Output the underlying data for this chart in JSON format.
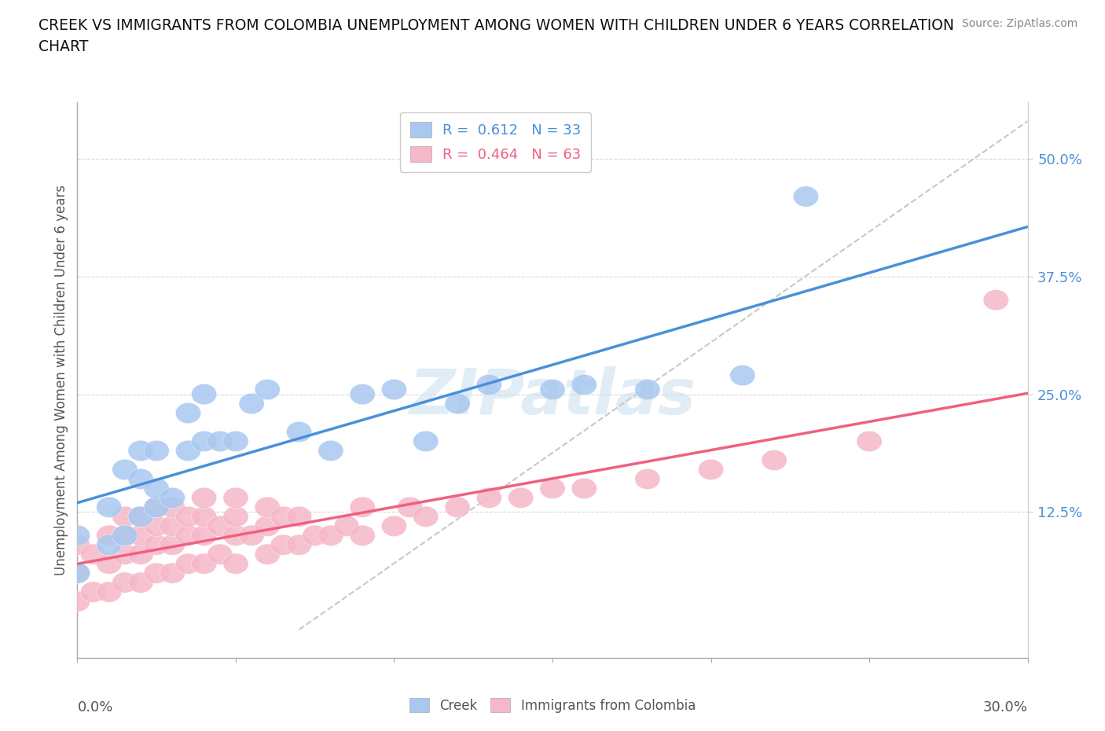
{
  "title": "CREEK VS IMMIGRANTS FROM COLOMBIA UNEMPLOYMENT AMONG WOMEN WITH CHILDREN UNDER 6 YEARS CORRELATION\nCHART",
  "source": "Source: ZipAtlas.com",
  "ylabel_label": "Unemployment Among Women with Children Under 6 years",
  "y_tick_labels": [
    "12.5%",
    "25.0%",
    "37.5%",
    "50.0%"
  ],
  "y_tick_values": [
    0.125,
    0.25,
    0.375,
    0.5
  ],
  "xlim": [
    0.0,
    0.3
  ],
  "ylim": [
    -0.03,
    0.56
  ],
  "creek_color": "#a8c8f0",
  "colombia_color": "#f5b8c8",
  "creek_line_color": "#4a90d9",
  "colombia_line_color": "#f06080",
  "trend_dash_color": "#c8c8c8",
  "creek_R": 0.612,
  "creek_N": 33,
  "colombia_R": 0.464,
  "colombia_N": 63,
  "watermark": "ZIPatlas",
  "creek_x": [
    0.0,
    0.0,
    0.01,
    0.01,
    0.015,
    0.015,
    0.02,
    0.02,
    0.02,
    0.025,
    0.025,
    0.025,
    0.03,
    0.035,
    0.035,
    0.04,
    0.04,
    0.045,
    0.05,
    0.055,
    0.06,
    0.07,
    0.08,
    0.09,
    0.1,
    0.11,
    0.12,
    0.13,
    0.15,
    0.16,
    0.18,
    0.21,
    0.23
  ],
  "creek_y": [
    0.06,
    0.1,
    0.09,
    0.13,
    0.1,
    0.17,
    0.12,
    0.16,
    0.19,
    0.13,
    0.15,
    0.19,
    0.14,
    0.19,
    0.23,
    0.2,
    0.25,
    0.2,
    0.2,
    0.24,
    0.255,
    0.21,
    0.19,
    0.25,
    0.255,
    0.2,
    0.24,
    0.26,
    0.255,
    0.26,
    0.255,
    0.27,
    0.46
  ],
  "colombia_x": [
    0.0,
    0.0,
    0.0,
    0.005,
    0.005,
    0.01,
    0.01,
    0.01,
    0.015,
    0.015,
    0.015,
    0.015,
    0.02,
    0.02,
    0.02,
    0.02,
    0.025,
    0.025,
    0.025,
    0.025,
    0.03,
    0.03,
    0.03,
    0.03,
    0.035,
    0.035,
    0.035,
    0.04,
    0.04,
    0.04,
    0.04,
    0.045,
    0.045,
    0.05,
    0.05,
    0.05,
    0.05,
    0.055,
    0.06,
    0.06,
    0.06,
    0.065,
    0.065,
    0.07,
    0.07,
    0.075,
    0.08,
    0.085,
    0.09,
    0.09,
    0.1,
    0.105,
    0.11,
    0.12,
    0.13,
    0.14,
    0.15,
    0.16,
    0.18,
    0.2,
    0.22,
    0.25,
    0.29
  ],
  "colombia_y": [
    0.03,
    0.06,
    0.09,
    0.04,
    0.08,
    0.04,
    0.07,
    0.1,
    0.05,
    0.08,
    0.1,
    0.12,
    0.05,
    0.08,
    0.1,
    0.12,
    0.06,
    0.09,
    0.11,
    0.13,
    0.06,
    0.09,
    0.11,
    0.13,
    0.07,
    0.1,
    0.12,
    0.07,
    0.1,
    0.12,
    0.14,
    0.08,
    0.11,
    0.07,
    0.1,
    0.12,
    0.14,
    0.1,
    0.08,
    0.11,
    0.13,
    0.09,
    0.12,
    0.09,
    0.12,
    0.1,
    0.1,
    0.11,
    0.1,
    0.13,
    0.11,
    0.13,
    0.12,
    0.13,
    0.14,
    0.14,
    0.15,
    0.15,
    0.16,
    0.17,
    0.18,
    0.2,
    0.35
  ],
  "background_color": "#ffffff",
  "grid_color": "#d8d8d8"
}
